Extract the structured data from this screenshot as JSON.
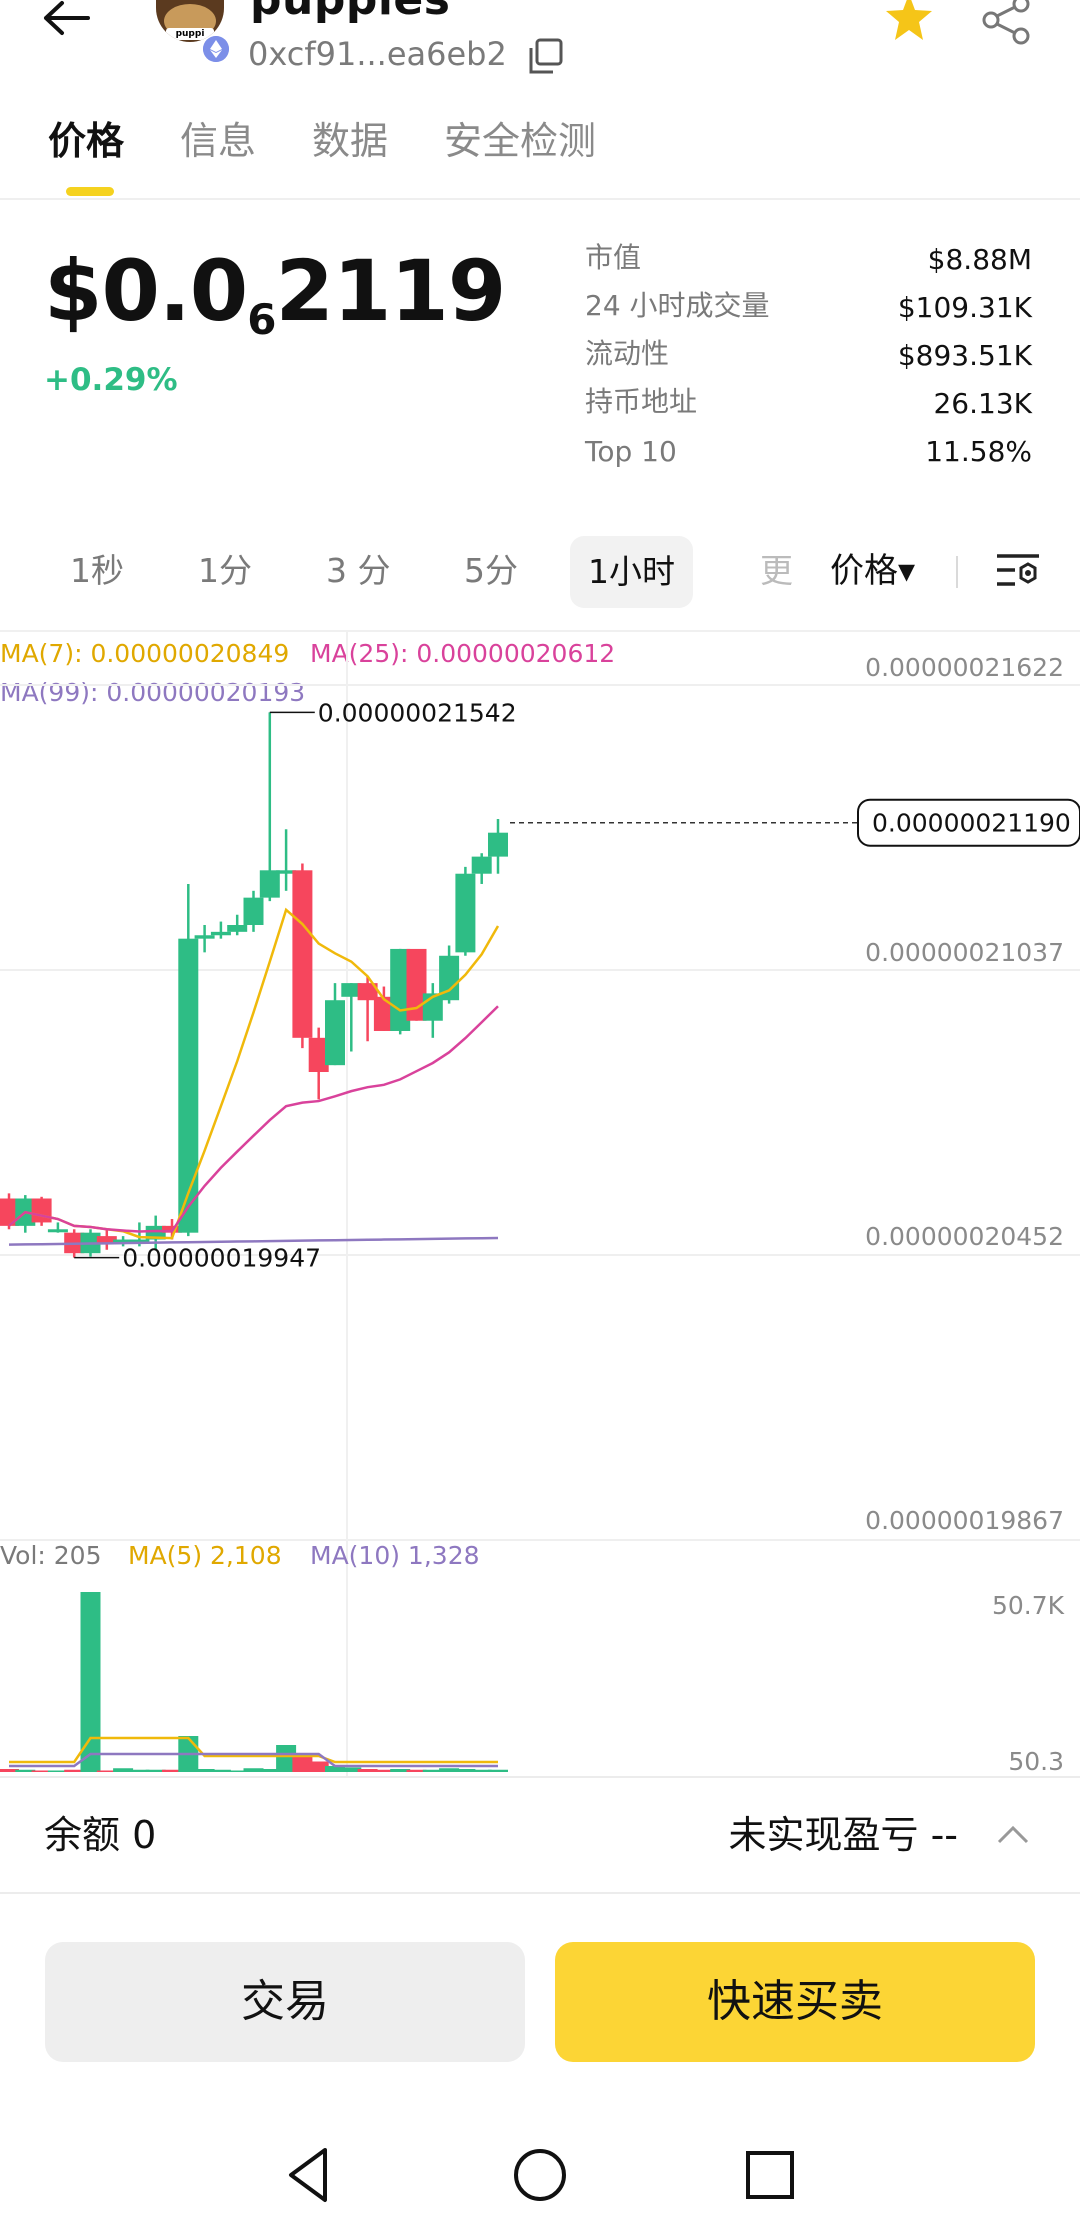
{
  "header": {
    "token_name": "puppies",
    "address": "0xcf91...ea6eb2",
    "avatar_tag": "puppi"
  },
  "tabs": [
    {
      "label": "价格",
      "active": true
    },
    {
      "label": "信息",
      "active": false
    },
    {
      "label": "数据",
      "active": false
    },
    {
      "label": "安全检测",
      "active": false
    }
  ],
  "price": {
    "prefix": "$0.0",
    "zeros": "6",
    "suffix": "2119",
    "change": "+0.29%"
  },
  "stats": [
    {
      "label": "市值",
      "value": "$8.88M"
    },
    {
      "label": "24 小时成交量",
      "value": "$109.31K"
    },
    {
      "label": "流动性",
      "value": "$893.51K"
    },
    {
      "label": "持币地址",
      "value": "26.13K"
    },
    {
      "label": "Top 10",
      "value": "11.58%"
    }
  ],
  "intervals": [
    {
      "label": "1秒"
    },
    {
      "label": "1分"
    },
    {
      "label": "3 分"
    },
    {
      "label": "5分"
    },
    {
      "label": "1小时",
      "active": true
    },
    {
      "label": "更"
    }
  ],
  "price_mode": "价格▾",
  "chart_data": {
    "type": "candlestick",
    "interval": "1小时",
    "ma_legend": {
      "ma7": "MA(7): 0.00000020849",
      "ma25": "MA(25): 0.00000020612",
      "ma99": "MA(99): 0.00000020193"
    },
    "y_ticks": [
      "0.00000021622",
      "0.00000021037",
      "0.00000020452",
      "0.00000019867"
    ],
    "y_range": [
      1.9867e-07,
      2.1622e-07
    ],
    "high_label": "0.00000021542",
    "low_label": "0.00000019947",
    "last_price_label": "0.00000021190",
    "colors": {
      "up": "#2ebd85",
      "down": "#f6465d",
      "ma7": "#f0b90b",
      "ma25": "#d9429b",
      "ma99": "#8e78c0"
    },
    "candles": [
      {
        "o": 2.012e-07,
        "h": 2.0135e-07,
        "l": 2.003e-07,
        "c": 2.004e-07
      },
      {
        "o": 2.004e-07,
        "h": 2.013e-07,
        "l": 2.002e-07,
        "c": 2.012e-07
      },
      {
        "o": 2.012e-07,
        "h": 2.0125e-07,
        "l": 2.004e-07,
        "c": 2.005e-07
      },
      {
        "o": 2.003e-07,
        "h": 2.005e-07,
        "l": 2.002e-07,
        "c": 2.003e-07
      },
      {
        "o": 2.002e-07,
        "h": 2.003e-07,
        "l": 1.9947e-07,
        "c": 1.996e-07
      },
      {
        "o": 1.996e-07,
        "h": 2.003e-07,
        "l": 1.995e-07,
        "c": 2.002e-07
      },
      {
        "o": 2.001e-07,
        "h": 2.003e-07,
        "l": 1.997e-07,
        "c": 1.999e-07
      },
      {
        "o": 2e-07,
        "h": 2.001e-07,
        "l": 1.998e-07,
        "c": 2e-07
      },
      {
        "o": 2e-07,
        "h": 2.005e-07,
        "l": 1.998e-07,
        "c": 2e-07
      },
      {
        "o": 2e-07,
        "h": 2.007e-07,
        "l": 1.997e-07,
        "c": 2.004e-07
      },
      {
        "o": 2.004e-07,
        "h": 2.006e-07,
        "l": 2e-07,
        "c": 2.002e-07
      },
      {
        "o": 2.002e-07,
        "h": 2.104e-07,
        "l": 2.001e-07,
        "c": 2.088e-07
      },
      {
        "o": 2.088e-07,
        "h": 2.092e-07,
        "l": 2.084e-07,
        "c": 2.089e-07
      },
      {
        "o": 2.089e-07,
        "h": 2.093e-07,
        "l": 2.088e-07,
        "c": 2.09e-07
      },
      {
        "o": 2.09e-07,
        "h": 2.095e-07,
        "l": 2.089e-07,
        "c": 2.092e-07
      },
      {
        "o": 2.092e-07,
        "h": 2.102e-07,
        "l": 2.09e-07,
        "c": 2.1e-07
      },
      {
        "o": 2.1e-07,
        "h": 2.1542e-07,
        "l": 2.099e-07,
        "c": 2.108e-07
      },
      {
        "o": 2.107e-07,
        "h": 2.12e-07,
        "l": 2.102e-07,
        "c": 2.108e-07
      },
      {
        "o": 2.108e-07,
        "h": 2.11e-07,
        "l": 2.056e-07,
        "c": 2.059e-07
      },
      {
        "o": 2.059e-07,
        "h": 2.062e-07,
        "l": 2.041e-07,
        "c": 2.049e-07
      },
      {
        "o": 2.051e-07,
        "h": 2.075e-07,
        "l": 2.051e-07,
        "c": 2.07e-07
      },
      {
        "o": 2.071e-07,
        "h": 2.075e-07,
        "l": 2.055e-07,
        "c": 2.075e-07
      },
      {
        "o": 2.075e-07,
        "h": 2.077e-07,
        "l": 2.058e-07,
        "c": 2.07e-07
      },
      {
        "o": 2.071e-07,
        "h": 2.074e-07,
        "l": 2.061e-07,
        "c": 2.061e-07
      },
      {
        "o": 2.061e-07,
        "h": 2.085e-07,
        "l": 2.06e-07,
        "c": 2.085e-07
      },
      {
        "o": 2.085e-07,
        "h": 2.084e-07,
        "l": 2.064e-07,
        "c": 2.064e-07
      },
      {
        "o": 2.064e-07,
        "h": 2.075e-07,
        "l": 2.059e-07,
        "c": 2.072e-07
      },
      {
        "o": 2.07e-07,
        "h": 2.086e-07,
        "l": 2.069e-07,
        "c": 2.083e-07
      },
      {
        "o": 2.084e-07,
        "h": 2.109e-07,
        "l": 2.083e-07,
        "c": 2.107e-07
      },
      {
        "o": 2.107e-07,
        "h": 2.113e-07,
        "l": 2.104e-07,
        "c": 2.112e-07
      },
      {
        "o": 2.112e-07,
        "h": 2.123e-07,
        "l": 2.107e-07,
        "c": 2.119e-07
      }
    ],
    "volume": {
      "legend_vol": "Vol: 205",
      "legend_ma5": "MA(5) 2,108",
      "legend_ma10": "MA(10) 1,328",
      "y_ticks": [
        "50.7K",
        "50.3"
      ]
    }
  },
  "footer": {
    "balance": "余额 0",
    "pnl": "未实现盈亏 --",
    "trade_label": "交易",
    "quick_trade_label": "快速买卖"
  }
}
